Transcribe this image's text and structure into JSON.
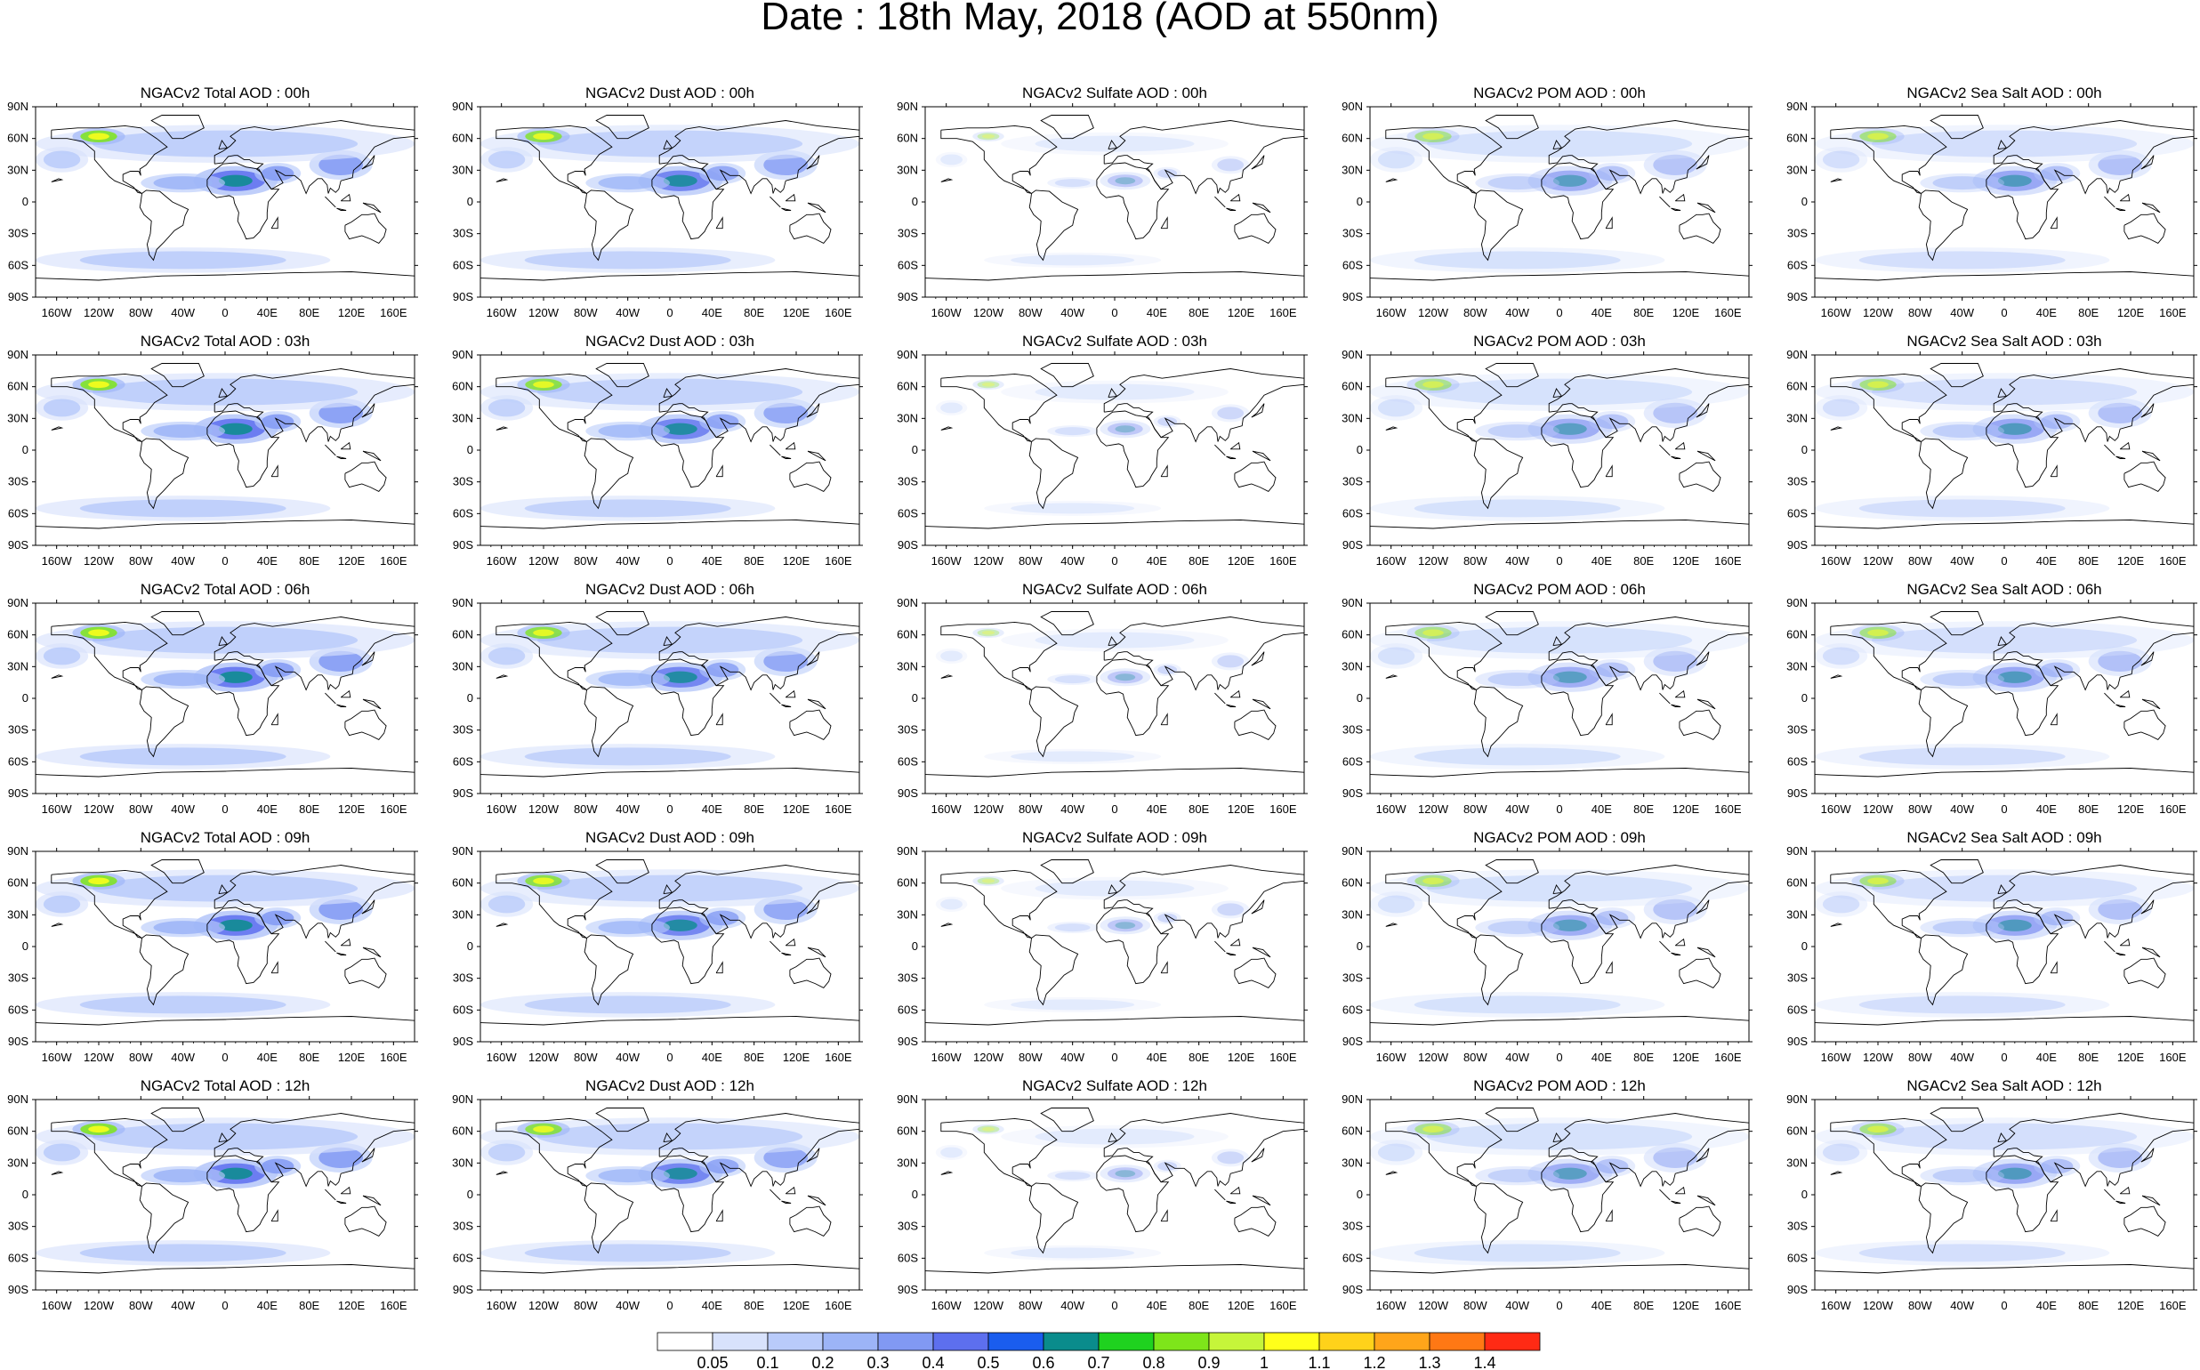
{
  "title": "Date : 18th May, 2018 (AOD at 550nm)",
  "panel_titles": [
    [
      "NGACv2 Total AOD : 00h",
      "NGACv2 Dust AOD : 00h",
      "NGACv2 Sulfate AOD : 00h",
      "NGACv2 POM AOD : 00h",
      "NGACv2 Sea Salt AOD : 00h"
    ],
    [
      "NGACv2 Total AOD : 03h",
      "NGACv2 Dust AOD : 03h",
      "NGACv2 Sulfate AOD : 03h",
      "NGACv2 POM AOD : 03h",
      "NGACv2 Sea Salt AOD : 03h"
    ],
    [
      "NGACv2 Total AOD : 06h",
      "NGACv2 Dust AOD : 06h",
      "NGACv2 Sulfate AOD : 06h",
      "NGACv2 POM AOD : 06h",
      "NGACv2 Sea Salt AOD : 06h"
    ],
    [
      "NGACv2 Total AOD : 09h",
      "NGACv2 Dust AOD : 09h",
      "NGACv2 Sulfate AOD : 09h",
      "NGACv2 POM AOD : 09h",
      "NGACv2 Sea Salt  AOD : 09h"
    ],
    [
      "NGACv2 Total AOD :  12h",
      "NGACv2 Dust AOD : 12h",
      "NGACv2 Sulfate AOD : 12h",
      "NGACv2 POM  AOD : 12h",
      "NGACv2 Sea Salt AOD : 12h"
    ]
  ],
  "lat_ticks": [
    "90N",
    "60N",
    "30N",
    "0",
    "30S",
    "60S",
    "90S"
  ],
  "lon_ticks": [
    "160W",
    "120W",
    "80W",
    "40W",
    "0",
    "40E",
    "80E",
    "120E",
    "160E"
  ],
  "lon_tick_values": [
    -160,
    -120,
    -80,
    -40,
    0,
    40,
    80,
    120,
    160
  ],
  "lat_tick_values": [
    90,
    60,
    30,
    0,
    -30,
    -60,
    -90
  ],
  "colorbar": {
    "labels": [
      "0.05",
      "0.1",
      "0.2",
      "0.3",
      "0.4",
      "0.5",
      "0.6",
      "0.7",
      "0.8",
      "0.9",
      "1",
      "1.1",
      "1.2",
      "1.3",
      "1.4"
    ],
    "colors": [
      "#ffffff",
      "#d8e2fc",
      "#b9cbfa",
      "#9cb4f7",
      "#8199f3",
      "#5d6fee",
      "#1a5dee",
      "#0a8c8c",
      "#1fd21f",
      "#7ee51a",
      "#c6f53a",
      "#ffff1a",
      "#ffd21a",
      "#ffa51a",
      "#ff7814",
      "#ff2a14"
    ]
  }
}
